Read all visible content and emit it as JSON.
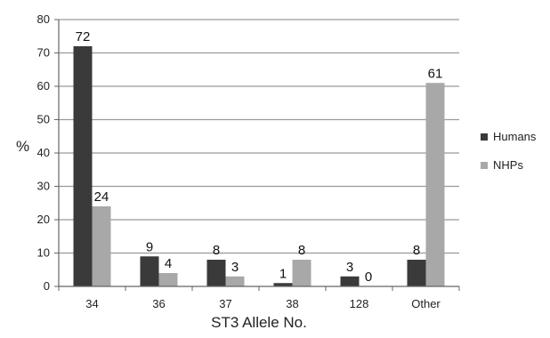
{
  "chart_data": {
    "type": "bar",
    "categories": [
      "34",
      "36",
      "37",
      "38",
      "128",
      "Other"
    ],
    "series": [
      {
        "name": "Humans",
        "values": [
          72,
          9,
          8,
          1,
          3,
          8
        ],
        "color": "#3a3a3a"
      },
      {
        "name": "NHPs",
        "values": [
          24,
          4,
          3,
          8,
          0,
          61
        ],
        "color": "#a8a8a8"
      }
    ],
    "title": "",
    "xlabel": "ST3 Allele No.",
    "ylabel": "%",
    "ylim": [
      0,
      80
    ],
    "yticks": [
      "0",
      "10",
      "20",
      "30",
      "40",
      "50",
      "60",
      "70",
      "80"
    ],
    "grid": true,
    "legend": "right"
  }
}
